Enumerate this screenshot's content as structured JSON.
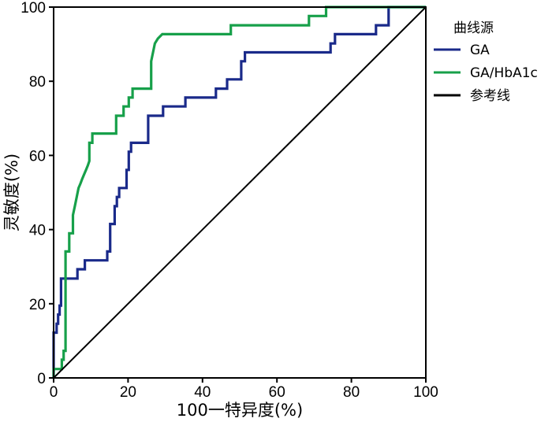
{
  "chart_data": {
    "type": "line",
    "title": "",
    "xlabel": "100一特异度(%)",
    "ylabel": "灵敏度(%)",
    "xlim": [
      0,
      100
    ],
    "ylim": [
      0,
      100
    ],
    "x_ticks": [
      0,
      20,
      40,
      60,
      80,
      100
    ],
    "y_ticks": [
      0,
      20,
      40,
      60,
      80,
      100
    ],
    "grid": false,
    "legend": {
      "title": "曲线源",
      "placement": "right"
    },
    "series": [
      {
        "name": "GA",
        "color": "#1a2a8a",
        "x": [
          0,
          0,
          0.8,
          0.8,
          1.2,
          1.2,
          1.6,
          1.6,
          2.0,
          2.0,
          6.4,
          6.4,
          8.4,
          8.4,
          10.4,
          10.4,
          14.4,
          14.4,
          15.2,
          15.2,
          16.4,
          16.4,
          17.0,
          17.0,
          17.6,
          17.6,
          19.6,
          19.6,
          20.2,
          20.2,
          20.8,
          20.8,
          21.4,
          21.4,
          25.4,
          25.4,
          29.4,
          29.4,
          35.4,
          35.4,
          43.6,
          43.6,
          46.6,
          46.6,
          50.4,
          50.4,
          51.4,
          51.4,
          52.4,
          52.4,
          74.4,
          74.4,
          75.6,
          75.6,
          86.6,
          86.6,
          90.0,
          90.0,
          100
        ],
        "y": [
          0,
          12.2,
          12.2,
          14.6,
          14.6,
          17.1,
          17.1,
          19.5,
          19.5,
          26.8,
          26.8,
          29.3,
          29.3,
          31.7,
          31.7,
          31.7,
          31.7,
          34.1,
          34.1,
          41.5,
          41.5,
          46.3,
          46.3,
          48.8,
          48.8,
          51.2,
          51.2,
          56.1,
          56.1,
          61.0,
          61.0,
          63.4,
          63.4,
          63.4,
          63.4,
          70.7,
          70.7,
          73.2,
          73.2,
          75.6,
          75.6,
          78.0,
          78.0,
          80.5,
          80.5,
          85.4,
          85.4,
          87.8,
          87.8,
          87.8,
          87.8,
          90.2,
          90.2,
          92.7,
          92.7,
          95.1,
          95.1,
          100,
          100
        ]
      },
      {
        "name": "GA/HbA1c",
        "color": "#17a04a",
        "x": [
          0,
          0,
          2.2,
          2.2,
          2.7,
          2.7,
          3.2,
          3.2,
          4.2,
          4.2,
          5.2,
          5.2,
          5.7,
          6.2,
          6.7,
          7.2,
          7.7,
          8.2,
          8.7,
          9.2,
          9.6,
          9.6,
          10.4,
          10.4,
          11.6,
          11.6,
          12.2,
          12.2,
          16.8,
          16.8,
          18.8,
          18.8,
          20.2,
          20.2,
          21.2,
          21.2,
          22.6,
          22.6,
          26.2,
          26.2,
          27.2,
          28.0,
          29.2,
          29.2,
          47.6,
          47.6,
          68.6,
          68.6,
          72.4,
          72.4,
          73.2,
          73.2,
          100
        ],
        "y": [
          0,
          2.4,
          2.4,
          4.9,
          4.9,
          7.3,
          7.3,
          34.1,
          34.1,
          39.0,
          39.0,
          43.9,
          46.3,
          48.8,
          51.2,
          52.4,
          53.7,
          54.9,
          56.1,
          57.3,
          58.5,
          63.4,
          63.4,
          65.9,
          65.9,
          65.9,
          65.9,
          65.9,
          65.9,
          70.7,
          70.7,
          73.2,
          73.2,
          75.6,
          75.6,
          78.0,
          78.0,
          78.0,
          78.0,
          85.4,
          90.2,
          91.5,
          92.7,
          92.7,
          92.7,
          95.1,
          95.1,
          97.6,
          97.6,
          97.6,
          97.6,
          100,
          100
        ]
      },
      {
        "name": "参考线",
        "color": "#000000",
        "x": [
          0,
          100
        ],
        "y": [
          0,
          100
        ]
      }
    ]
  }
}
